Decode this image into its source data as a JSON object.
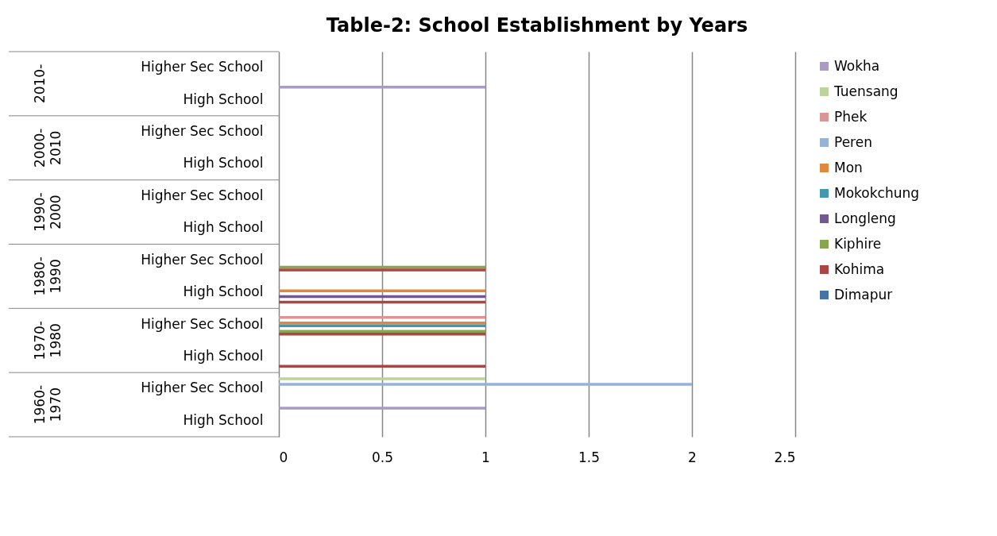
{
  "chart_data": {
    "type": "bar",
    "orientation": "horizontal",
    "title": "Table-2: School Establishment by Years",
    "categories": [
      "Higher Sec School",
      "High School",
      "Higher Sec School",
      "High School",
      "Higher Sec School",
      "High School",
      "Higher Sec School",
      "High School",
      "Higher Sec School",
      "High School",
      "Higher Sec School",
      "High School"
    ],
    "annotations": [
      "2010-",
      "2000-2010",
      "1990-2000",
      "1980-1990",
      "1970-1980",
      "1960-1970"
    ],
    "series": [
      {
        "name": "Wokha",
        "color": "#a99bc2",
        "values": [
          0,
          1,
          0,
          0,
          0,
          0,
          0,
          0,
          0,
          0,
          0,
          1
        ]
      },
      {
        "name": "Tuensang",
        "color": "#bcd39a",
        "values": [
          0,
          0,
          0,
          0,
          0,
          0,
          0,
          0,
          0,
          0,
          1,
          0
        ]
      },
      {
        "name": "Phek",
        "color": "#d99694",
        "values": [
          0,
          0,
          0,
          0,
          0,
          0,
          0,
          0,
          1,
          0,
          0,
          0
        ]
      },
      {
        "name": "Peren",
        "color": "#95b3d7",
        "values": [
          0,
          0,
          0,
          0,
          0,
          0,
          0,
          0,
          0,
          0,
          2,
          0
        ]
      },
      {
        "name": "Mon",
        "color": "#e0883e",
        "values": [
          0,
          0,
          0,
          0,
          0,
          0,
          0,
          1,
          1,
          0,
          0,
          0
        ]
      },
      {
        "name": "Mokokchung",
        "color": "#4298ae",
        "values": [
          0,
          0,
          0,
          0,
          0,
          0,
          0,
          0,
          1,
          0,
          0,
          0
        ]
      },
      {
        "name": "Longleng",
        "color": "#71588f",
        "values": [
          0,
          0,
          0,
          0,
          0,
          0,
          0,
          1,
          0,
          0,
          0,
          0
        ]
      },
      {
        "name": "Kiphire",
        "color": "#89a54e",
        "values": [
          0,
          0,
          0,
          0,
          0,
          0,
          1,
          0,
          1,
          0,
          0,
          0
        ]
      },
      {
        "name": "Kohima",
        "color": "#aa4643",
        "values": [
          0,
          0,
          0,
          0,
          0,
          0,
          1,
          1,
          1,
          1,
          0,
          0
        ]
      },
      {
        "name": "Dimapur",
        "color": "#4572a7",
        "values": [
          0,
          0,
          0,
          0,
          0,
          0,
          0,
          0,
          0,
          0,
          0,
          0
        ]
      }
    ],
    "xlim": [
      0,
      2.5
    ],
    "xticks": [
      0,
      0.5,
      1,
      1.5,
      2,
      2.5
    ],
    "grid": "x",
    "legend": "right"
  }
}
